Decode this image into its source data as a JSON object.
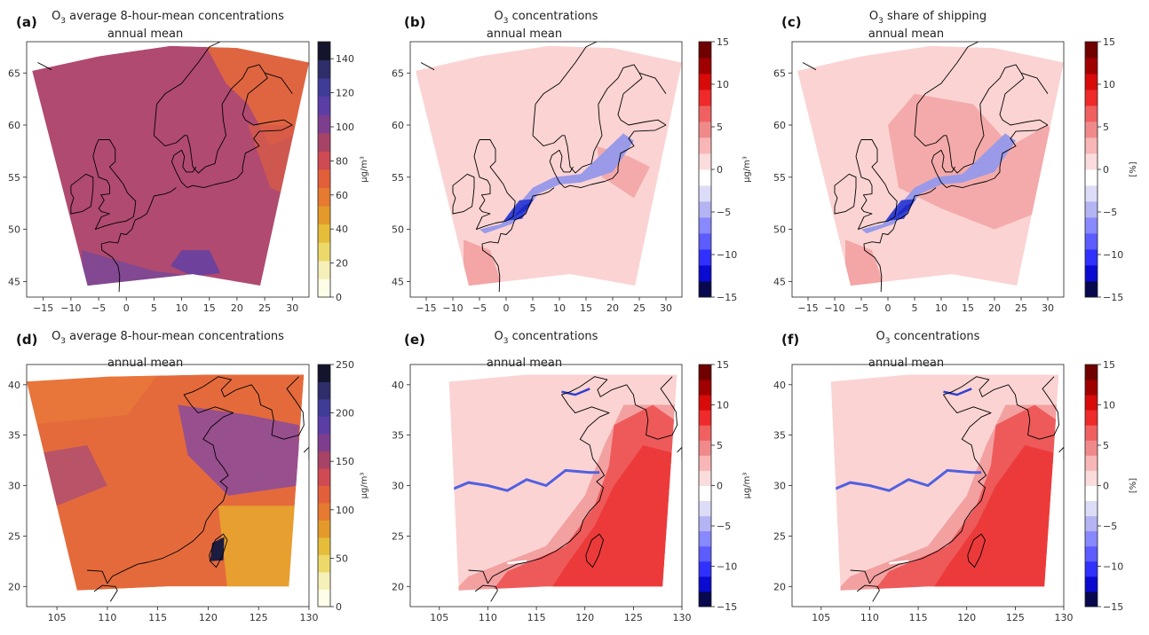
{
  "figure": {
    "panels": [
      {
        "letter": "(a)",
        "title_pre": "O",
        "title_sub": "3",
        "title_post": " average 8-hour-mean concentrations",
        "subtitle": "annual mean",
        "region": "europe",
        "palette": "conc",
        "x_ticks": [
          "−15",
          "−10",
          "−5",
          "0",
          "5",
          "10",
          "15",
          "20",
          "25",
          "30"
        ],
        "y_ticks": [
          "45",
          "50",
          "55",
          "60",
          "65"
        ],
        "cbar_ticks": [
          "0",
          "20",
          "40",
          "60",
          "80",
          "100",
          "120",
          "140"
        ],
        "cbar_label": "µg/m³"
      },
      {
        "letter": "(b)",
        "title_pre": "O",
        "title_sub": "3",
        "title_post": " concentrations",
        "subtitle": "annual mean",
        "region": "europe",
        "palette": "diff",
        "x_ticks": [
          "−15",
          "−10",
          "−5",
          "0",
          "5",
          "10",
          "15",
          "20",
          "25",
          "30"
        ],
        "y_ticks": [
          "45",
          "50",
          "55",
          "60",
          "65"
        ],
        "cbar_ticks": [
          "15",
          "10",
          "5",
          "0",
          "−5",
          "−10",
          "−15"
        ],
        "cbar_label": "µg/m³"
      },
      {
        "letter": "(c)",
        "title_pre": "O",
        "title_sub": "3",
        "title_post": " share of shipping",
        "subtitle": "annual mean",
        "region": "europe",
        "palette": "diff",
        "x_ticks": [
          "−15",
          "−10",
          "−5",
          "0",
          "5",
          "10",
          "15",
          "20",
          "25",
          "30"
        ],
        "y_ticks": [
          "45",
          "50",
          "55",
          "60",
          "65"
        ],
        "cbar_ticks": [
          "15",
          "10",
          "5",
          "0",
          "−5",
          "−10",
          "−15"
        ],
        "cbar_label": "[%]"
      },
      {
        "letter": "(d)",
        "title_pre": "O",
        "title_sub": "3",
        "title_post": " average 8-hour-mean concentrations",
        "subtitle": "annual mean",
        "region": "asia",
        "palette": "conc",
        "x_ticks": [
          "105",
          "110",
          "115",
          "120",
          "125",
          "130"
        ],
        "y_ticks": [
          "20",
          "25",
          "30",
          "35",
          "40"
        ],
        "cbar_ticks": [
          "0",
          "50",
          "100",
          "150",
          "200",
          "250"
        ],
        "cbar_label": "µg/m³"
      },
      {
        "letter": "(e)",
        "title_pre": "O",
        "title_sub": "3",
        "title_post": " concentrations",
        "subtitle": "annual mean",
        "region": "asia",
        "palette": "diff",
        "x_ticks": [
          "105",
          "110",
          "115",
          "120",
          "125",
          "130"
        ],
        "y_ticks": [
          "20",
          "25",
          "30",
          "35",
          "40"
        ],
        "cbar_ticks": [
          "15",
          "10",
          "5",
          "0",
          "−5",
          "−10",
          "−15"
        ],
        "cbar_label": "µg/m³"
      },
      {
        "letter": "(f)",
        "title_pre": "O",
        "title_sub": "3",
        "title_post": " concentrations",
        "subtitle": "annual mean",
        "region": "asia",
        "palette": "diff",
        "x_ticks": [
          "105",
          "110",
          "115",
          "120",
          "125",
          "130"
        ],
        "y_ticks": [
          "20",
          "25",
          "30",
          "35",
          "40"
        ],
        "cbar_ticks": [
          "15",
          "10",
          "5",
          "0",
          "−5",
          "−10",
          "−15"
        ],
        "cbar_label": "[%]"
      }
    ]
  },
  "colors": {
    "conc_bands": [
      "#fdfde8",
      "#f5efb8",
      "#ecd96a",
      "#e5bd3a",
      "#e49a2b",
      "#e57a30",
      "#e35f3a",
      "#cf4a52",
      "#a84368",
      "#7e3e8e",
      "#5a3ea6",
      "#3f3c98",
      "#2e2e6a",
      "#14142c"
    ],
    "diff_bands": [
      "#08084e",
      "#0a0ad0",
      "#3030ff",
      "#5c5cff",
      "#8888ff",
      "#b4b4f4",
      "#dcdcf8",
      "#ffffff",
      "#fbdcdc",
      "#f8b6b6",
      "#f08a8a",
      "#f06060",
      "#ee2a2a",
      "#d80a0a",
      "#a00000",
      "#700000"
    ],
    "europe_base": "#b04a70",
    "europe_south": "#7a4896",
    "europe_ne": "#e4683c",
    "asia_base": "#e46a3c",
    "asia_east": "#8a4a9c",
    "asia_south": "#e7a52e",
    "diff_light": "#fbd3d3",
    "diff_mid": "#f3a0a0",
    "diff_strong": "#ec3a3a",
    "diff_blue": "#2030d0",
    "diff_blue_dark": "#101080",
    "coast": "#000000"
  }
}
